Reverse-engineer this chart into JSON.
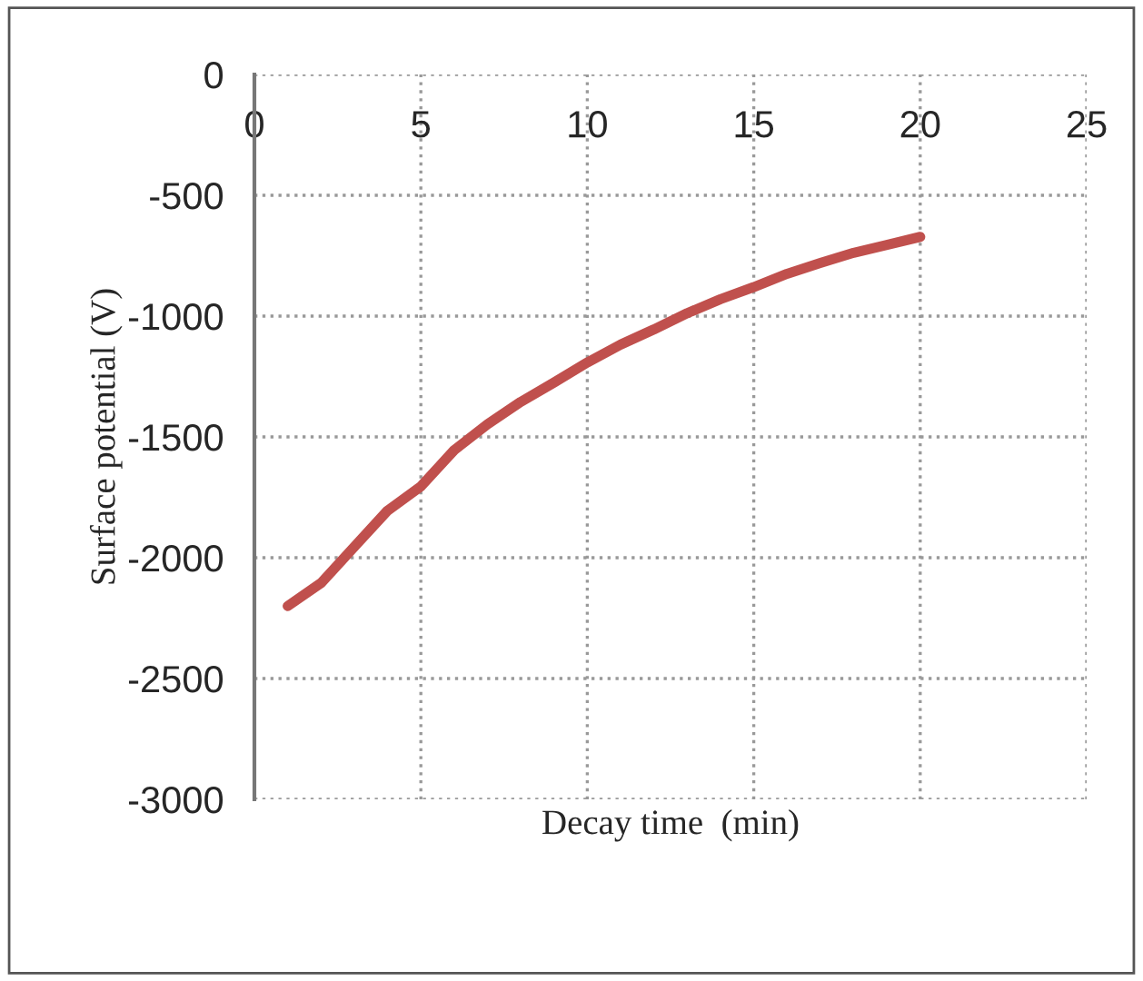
{
  "chart_data": {
    "type": "line",
    "xlabel": "Decay time  (min)",
    "ylabel": "Surface potential (V)",
    "x": [
      1,
      2,
      3,
      4,
      5,
      6,
      7,
      8,
      9,
      10,
      11,
      12,
      13,
      14,
      15,
      16,
      17,
      18,
      19,
      20
    ],
    "series": [
      {
        "color": "#c0504d",
        "values": [
          -2200,
          -2105,
          -1955,
          -1805,
          -1705,
          -1555,
          -1448,
          -1355,
          -1275,
          -1192,
          -1118,
          -1055,
          -988,
          -930,
          -880,
          -825,
          -780,
          -738,
          -705,
          -672
        ]
      }
    ],
    "xlim": [
      0,
      25
    ],
    "xticks": [
      0,
      5,
      10,
      15,
      20,
      25
    ],
    "ylim": [
      -3000,
      0
    ],
    "yticks": [
      -3000,
      -2500,
      -2000,
      -1500,
      -1000,
      -500,
      0
    ],
    "grid": true,
    "marker": "none",
    "line_style": "solid"
  }
}
